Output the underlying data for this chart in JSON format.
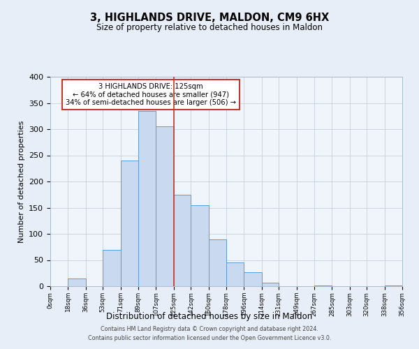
{
  "title": "3, HIGHLANDS DRIVE, MALDON, CM9 6HX",
  "subtitle": "Size of property relative to detached houses in Maldon",
  "xlabel": "Distribution of detached houses by size in Maldon",
  "ylabel": "Number of detached properties",
  "bin_edges": [
    0,
    18,
    36,
    53,
    71,
    89,
    107,
    125,
    142,
    160,
    178,
    196,
    214,
    231,
    249,
    267,
    285,
    303,
    320,
    338,
    356
  ],
  "bin_labels": [
    "0sqm",
    "18sqm",
    "36sqm",
    "53sqm",
    "71sqm",
    "89sqm",
    "107sqm",
    "125sqm",
    "142sqm",
    "160sqm",
    "178sqm",
    "196sqm",
    "214sqm",
    "231sqm",
    "249sqm",
    "267sqm",
    "285sqm",
    "303sqm",
    "320sqm",
    "338sqm",
    "356sqm"
  ],
  "bar_heights": [
    0,
    15,
    0,
    70,
    240,
    335,
    305,
    175,
    155,
    90,
    45,
    27,
    7,
    0,
    0,
    2,
    0,
    0,
    0,
    2
  ],
  "bar_color": "#c9d9f0",
  "bar_edge_color": "#5b9bd5",
  "marker_value": 125,
  "marker_color": "#c0392b",
  "annotation_title": "3 HIGHLANDS DRIVE: 125sqm",
  "annotation_line1": "← 64% of detached houses are smaller (947)",
  "annotation_line2": "34% of semi-detached houses are larger (506) →",
  "annotation_box_color": "#ffffff",
  "annotation_box_edge_color": "#c0392b",
  "ylim": [
    0,
    400
  ],
  "yticks": [
    0,
    50,
    100,
    150,
    200,
    250,
    300,
    350,
    400
  ],
  "footer1": "Contains HM Land Registry data © Crown copyright and database right 2024.",
  "footer2": "Contains public sector information licensed under the Open Government Licence v3.0.",
  "bg_color": "#e8eef8",
  "plot_bg_color": "#f0f4fb"
}
